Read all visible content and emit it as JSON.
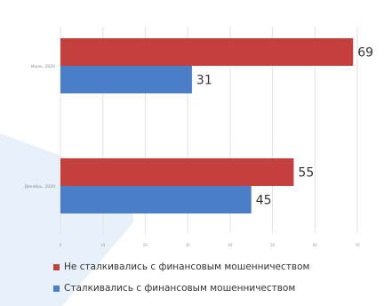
{
  "chart_data": {
    "type": "bar",
    "orientation": "horizontal",
    "title": "",
    "categories": [
      "Июль, 2020",
      "Декабрь, 2020"
    ],
    "series": [
      {
        "name": "Не сталкивались с финансовым мошенничеством",
        "values": [
          69,
          31
        ],
        "color": "#c4403f"
      },
      {
        "name": "Сталкивались с финансовым мошенничеством",
        "values": [
          55,
          45
        ],
        "color": "#4a7fc8"
      }
    ],
    "series_by_category": true,
    "xlim": [
      0,
      70
    ],
    "xticks": [
      "0",
      "10",
      "20",
      "30",
      "40",
      "50",
      "60",
      "70"
    ],
    "grid": true,
    "legend_position": "bottom-left"
  },
  "legend": {
    "item_1": "Не сталкивались с финансовым мошенничеством",
    "item_2": "Сталкивались с финансовым мошенничеством"
  },
  "colors": {
    "not_encountered": "#c4403f",
    "encountered": "#4a7fc8",
    "grid": "#e3e3e3",
    "background_accent": "#dfeaf6"
  }
}
